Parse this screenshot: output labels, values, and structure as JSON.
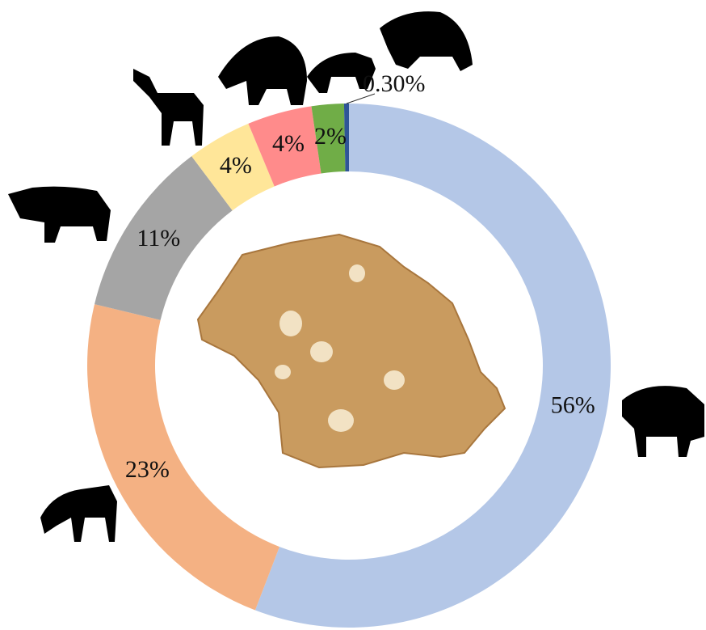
{
  "chart_data": {
    "type": "donut",
    "values": [
      56,
      23,
      11,
      4,
      4,
      2,
      0.3
    ],
    "value_labels": [
      "56%",
      "23%",
      "11%",
      "4%",
      "4%",
      "2%",
      "0.30%"
    ],
    "colors": [
      "#b4c7e7",
      "#f4b183",
      "#a5a5a5",
      "#ffe699",
      "#ff8b8b",
      "#70ad47",
      "#2f5597"
    ]
  }
}
